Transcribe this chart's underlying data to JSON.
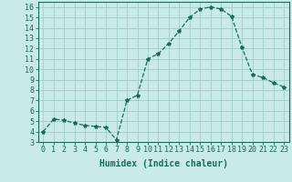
{
  "x": [
    0,
    1,
    2,
    3,
    4,
    5,
    6,
    7,
    8,
    9,
    10,
    11,
    12,
    13,
    14,
    15,
    16,
    17,
    18,
    19,
    20,
    21,
    22,
    23
  ],
  "y": [
    4,
    5.2,
    5.1,
    4.8,
    4.6,
    4.5,
    4.4,
    3.2,
    7.0,
    7.5,
    11.0,
    11.5,
    12.5,
    13.7,
    15.0,
    15.8,
    16.0,
    15.8,
    15.1,
    12.1,
    9.5,
    9.2,
    8.7,
    8.3
  ],
  "line_color": "#1a6b5a",
  "marker": "*",
  "marker_size": 3,
  "bg_color": "#c8ebe8",
  "grid_color": "#a0cdc9",
  "xlabel": "Humidex (Indice chaleur)",
  "xlim": [
    -0.5,
    23.5
  ],
  "ylim": [
    3,
    16.5
  ],
  "yticks": [
    3,
    4,
    5,
    6,
    7,
    8,
    9,
    10,
    11,
    12,
    13,
    14,
    15,
    16
  ],
  "xticks": [
    0,
    1,
    2,
    3,
    4,
    5,
    6,
    7,
    8,
    9,
    10,
    11,
    12,
    13,
    14,
    15,
    16,
    17,
    18,
    19,
    20,
    21,
    22,
    23
  ],
  "axis_color": "#1a6b5a",
  "tick_label_color": "#1a6b5a",
  "label_color": "#1a6b5a",
  "font_size": 6,
  "xlabel_fontsize": 7
}
